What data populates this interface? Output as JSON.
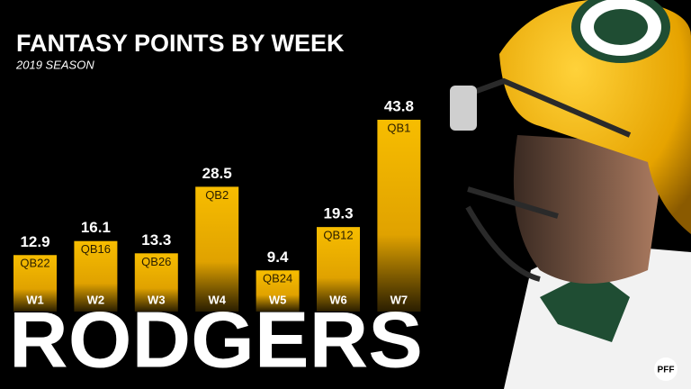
{
  "chart_data": {
    "type": "bar",
    "title": "FANTASY POINTS BY WEEK",
    "subtitle": "2019 SEASON",
    "categories": [
      "W1",
      "W2",
      "W3",
      "W4",
      "W5",
      "W6",
      "W7"
    ],
    "values": [
      12.9,
      16.1,
      13.3,
      28.5,
      9.4,
      19.3,
      43.8
    ],
    "ranks": [
      "QB22",
      "QB16",
      "QB26",
      "QB2",
      "QB24",
      "QB12",
      "QB1"
    ],
    "color": "#f5b800",
    "player": "RODGERS",
    "logo": "PFF"
  }
}
